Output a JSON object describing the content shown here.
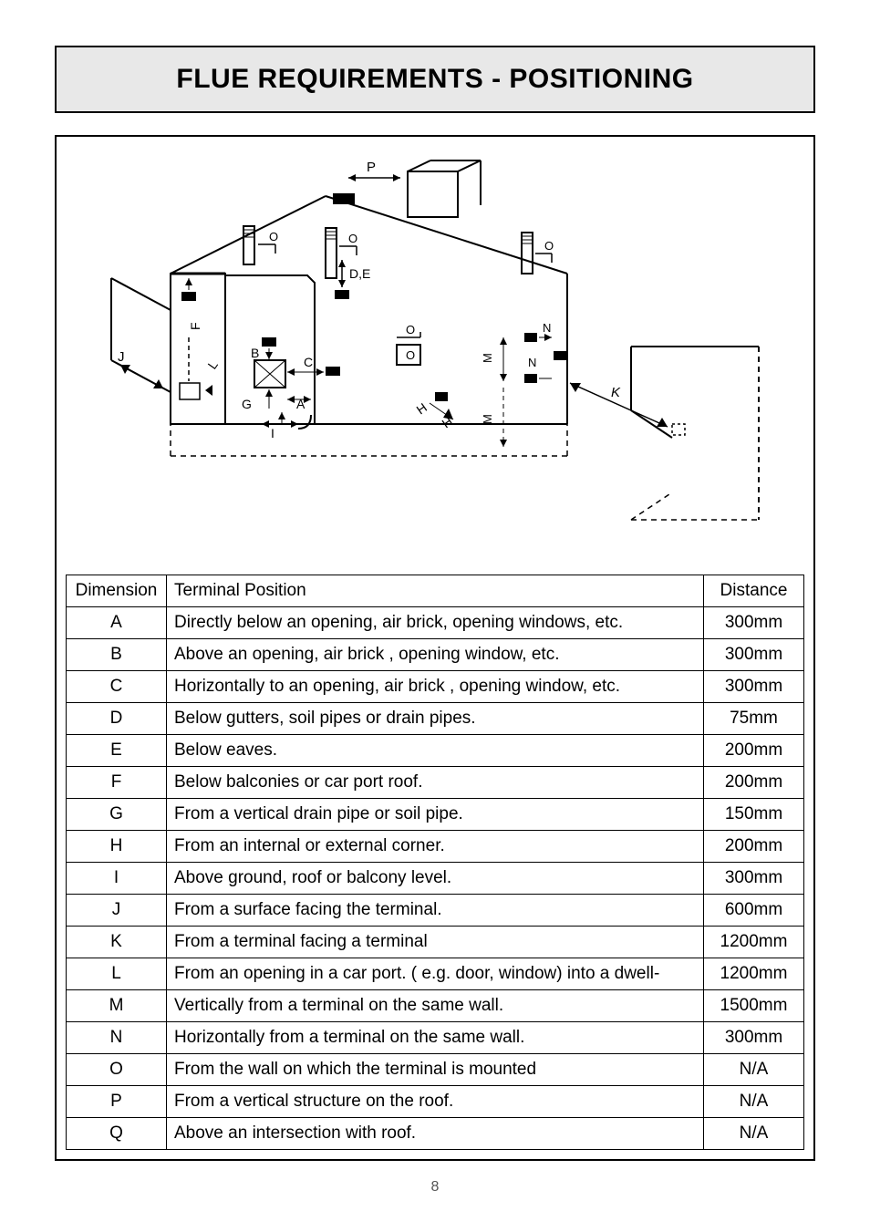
{
  "title": "FLUE REQUIREMENTS - POSITIONING",
  "page_number": "8",
  "table": {
    "headers": {
      "dimension": "Dimension",
      "position": "Terminal Position",
      "distance": "Distance"
    },
    "rows": [
      {
        "dim": "A",
        "pos": "Directly below an opening, air brick, opening windows, etc.",
        "dist": "300mm"
      },
      {
        "dim": "B",
        "pos": "Above an opening, air brick , opening window, etc.",
        "dist": "300mm"
      },
      {
        "dim": "C",
        "pos": "Horizontally to an opening, air brick , opening window, etc.",
        "dist": "300mm"
      },
      {
        "dim": "D",
        "pos": "Below gutters, soil pipes or drain pipes.",
        "dist": "75mm"
      },
      {
        "dim": "E",
        "pos": "Below eaves.",
        "dist": "200mm"
      },
      {
        "dim": "F",
        "pos": "Below balconies or car port roof.",
        "dist": "200mm"
      },
      {
        "dim": "G",
        "pos": "From a vertical drain pipe or soil pipe.",
        "dist": "150mm"
      },
      {
        "dim": "H",
        "pos": "From an internal or external corner.",
        "dist": "200mm"
      },
      {
        "dim": "I",
        "pos": "Above ground, roof or balcony level.",
        "dist": "300mm"
      },
      {
        "dim": "J",
        "pos": "From a surface facing the terminal.",
        "dist": "600mm"
      },
      {
        "dim": "K",
        "pos": "From a terminal facing a terminal",
        "dist": "1200mm"
      },
      {
        "dim": "L",
        "pos": "From an opening in a car port. ( e.g. door, window) into a dwell-",
        "dist": "1200mm"
      },
      {
        "dim": "M",
        "pos": "Vertically from a terminal on the same wall.",
        "dist": "1500mm"
      },
      {
        "dim": "N",
        "pos": "Horizontally from a terminal on the same wall.",
        "dist": "300mm"
      },
      {
        "dim": "O",
        "pos": "From the wall on which the terminal is mounted",
        "dist": "N/A"
      },
      {
        "dim": "P",
        "pos": "From a vertical structure on the roof.",
        "dist": "N/A"
      },
      {
        "dim": "Q",
        "pos": "Above an intersection with roof.",
        "dist": "N/A"
      }
    ]
  },
  "diagram": {
    "labels": [
      "A",
      "B",
      "C",
      "D,E",
      "F",
      "G",
      "H",
      "I",
      "J",
      "K",
      "L",
      "M",
      "N",
      "O",
      "P"
    ],
    "stroke": "#000000",
    "fill_black": "#000000",
    "dash": "6,5"
  }
}
